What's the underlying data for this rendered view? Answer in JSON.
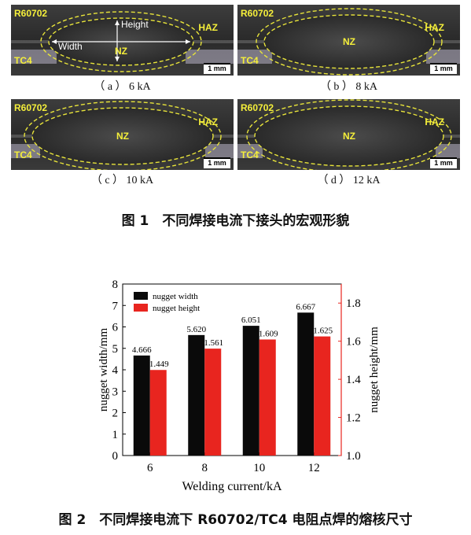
{
  "figure1": {
    "panels": [
      {
        "id": "a",
        "caption": "（ a ） 6 kA",
        "labels": {
          "base1": "R60702",
          "base2": "TC4",
          "nz": "NZ",
          "haz": "HAZ",
          "height": "Height",
          "width": "Width"
        },
        "scale": "1 mm"
      },
      {
        "id": "b",
        "caption": "（ b ） 8 kA",
        "labels": {
          "base1": "R60702",
          "base2": "TC4",
          "nz": "NZ",
          "haz": "HAZ"
        },
        "scale": "1 mm"
      },
      {
        "id": "c",
        "caption": "（ c ） 10 kA",
        "labels": {
          "base1": "R60702",
          "base2": "TC4",
          "nz": "NZ",
          "haz": "HAZ"
        },
        "scale": "1 mm"
      },
      {
        "id": "d",
        "caption": "（ d ） 12 kA",
        "labels": {
          "base1": "R60702",
          "base2": "TC4",
          "nz": "NZ",
          "haz": "HAZ"
        },
        "scale": "1 mm"
      }
    ],
    "title": "图 1　不同焊接电流下接头的宏观形貌"
  },
  "figure2": {
    "title": "图 2　不同焊接电流下 R60702/TC4 电阻点焊的熔核尺寸"
  },
  "chart_data": {
    "type": "bar",
    "categories": [
      "6",
      "8",
      "10",
      "12"
    ],
    "xlabel": "Welding current/kA",
    "ylabel": "nugget width/mm",
    "ylabel_right": "nugget height/mm",
    "ylim": [
      0,
      8
    ],
    "ylim_right": [
      1.0,
      1.9
    ],
    "yticks": [
      "0",
      "1",
      "2",
      "3",
      "4",
      "5",
      "6",
      "7",
      "8"
    ],
    "yticks_right": [
      "1.0",
      "1.2",
      "1.4",
      "1.6",
      "1.8"
    ],
    "legend_position": "top-left",
    "series": [
      {
        "name": "nugget width",
        "axis": "left",
        "color": "#0a0a0a",
        "values": [
          4.666,
          5.62,
          6.051,
          6.667
        ],
        "labels": [
          "4.666",
          "5.620",
          "6.051",
          "6.667"
        ]
      },
      {
        "name": "nugget height",
        "axis": "right",
        "color": "#e8251f",
        "values": [
          1.449,
          1.561,
          1.609,
          1.625
        ],
        "labels": [
          "1.449",
          "1.561",
          "1.609",
          "1.625"
        ]
      }
    ]
  }
}
